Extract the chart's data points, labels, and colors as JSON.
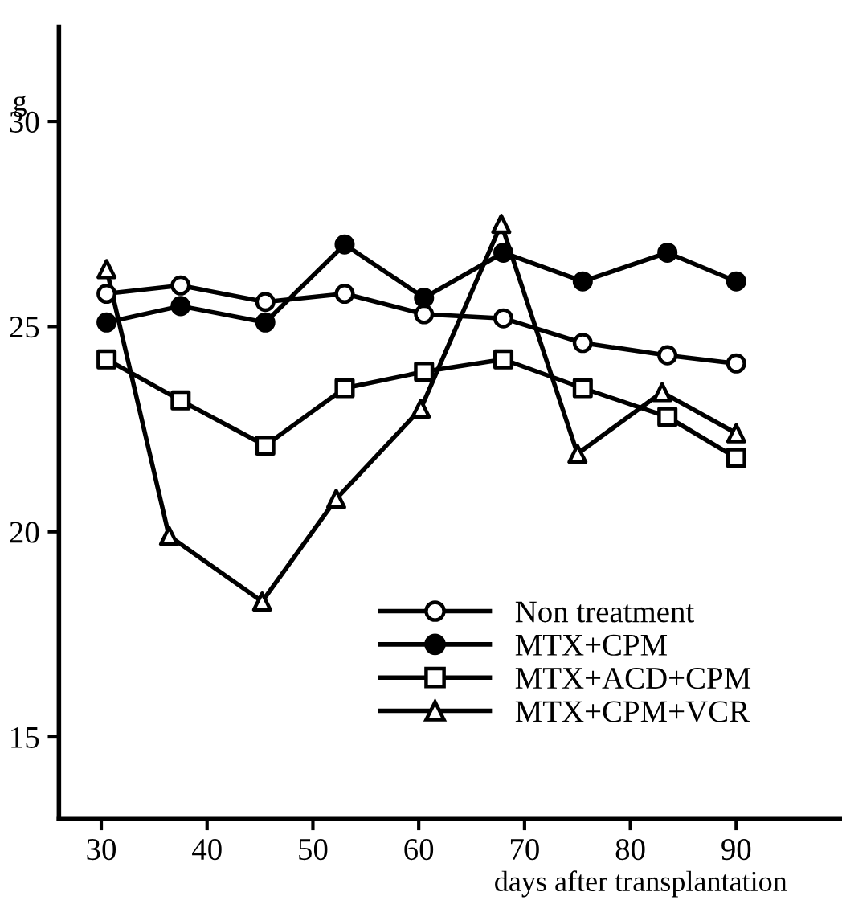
{
  "chart_data": {
    "type": "line",
    "xlabel": "days after transplantation",
    "ylabel": "g",
    "xlim": [
      26,
      100
    ],
    "xticks": [
      30,
      40,
      50,
      60,
      70,
      80,
      90
    ],
    "ylim": [
      13,
      32.3
    ],
    "yticks": [
      15,
      20,
      25,
      30
    ],
    "grid": false,
    "legend": "bottom right",
    "line_style": "solid",
    "series": [
      {
        "name": "Non treatment",
        "color": "#000000",
        "marker": "circle",
        "colors": [
          "#ffffff",
          "#ffffff",
          "#ffffff",
          "#ffffff",
          "#ffffff",
          "#ffffff",
          "#ffffff",
          "#ffffff",
          "#ffffff"
        ],
        "x": [
          30.5,
          37.5,
          45.5,
          53,
          60.5,
          68,
          75.5,
          83.5,
          90
        ],
        "values": [
          25.8,
          26.0,
          25.6,
          25.8,
          25.3,
          25.2,
          24.6,
          24.3,
          24.1
        ]
      },
      {
        "name": "MTX+CPM",
        "color": "#000000",
        "marker": "circle",
        "colors": [
          "#000000",
          "#000000",
          "#000000",
          "#000000",
          "#000000",
          "#000000",
          "#000000",
          "#000000",
          "#000000"
        ],
        "x": [
          30.5,
          37.5,
          45.5,
          53,
          60.5,
          68,
          75.5,
          83.5,
          90
        ],
        "values": [
          25.1,
          25.5,
          25.1,
          27.0,
          25.7,
          26.8,
          26.1,
          26.8,
          26.1
        ]
      },
      {
        "name": "MTX+ACD+CPM",
        "color": "#000000",
        "marker": "square",
        "colors": [
          "#ffffff",
          "#ffffff",
          "#ffffff",
          "#ffffff",
          "#ffffff",
          "#ffffff",
          "#ffffff",
          "#ffffff",
          "#ffffff"
        ],
        "x": [
          30.5,
          37.5,
          45.5,
          53,
          60.5,
          68,
          75.5,
          83.5,
          90
        ],
        "values": [
          24.2,
          23.2,
          22.1,
          23.5,
          23.9,
          24.2,
          23.5,
          22.8,
          21.8
        ]
      },
      {
        "name": "MTX+CPM+VCR",
        "color": "#000000",
        "marker": "triangle",
        "colors": [
          "#ffffff",
          "#ffffff",
          "#ffffff",
          "#ffffff",
          "#ffffff",
          "#ffffff",
          "#ffffff",
          "#ffffff",
          "#ffffff"
        ],
        "x": [
          30.5,
          36.4,
          45.2,
          52.2,
          60.2,
          67.8,
          75,
          83,
          90
        ],
        "values": [
          26.4,
          19.9,
          18.3,
          20.8,
          23.0,
          27.5,
          21.9,
          23.4,
          22.4
        ]
      }
    ]
  }
}
